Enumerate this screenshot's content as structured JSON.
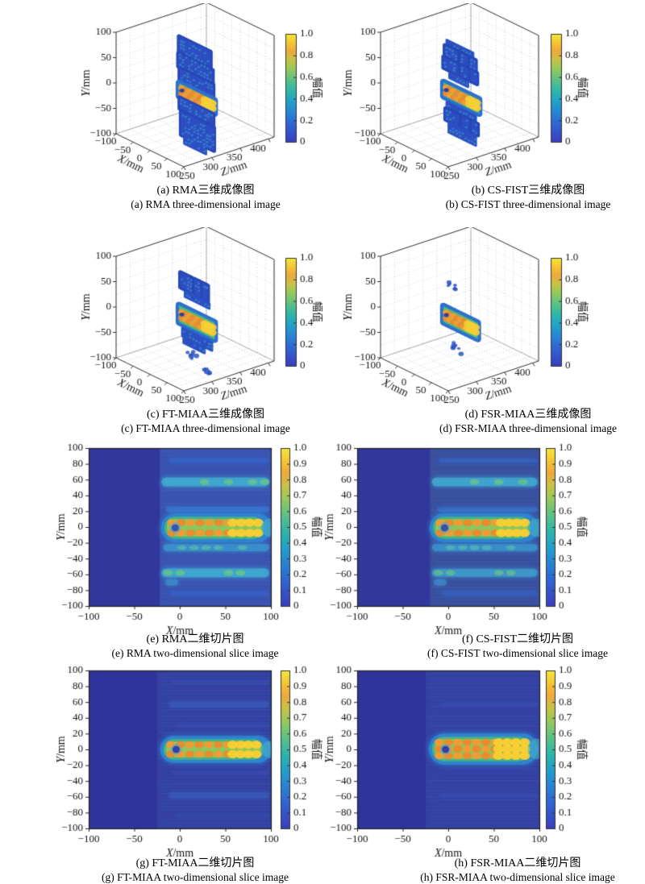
{
  "chart_data": {
    "type": "figure-grid",
    "description": "Eight-panel millimetre-wave radar imaging comparison: panels a-d are 3D voxel images, panels e-h are 2D slice heatmaps, each with an amplitude colorbar from 0 to 1.",
    "colorbar_label": "幅值",
    "colormap_stops": [
      [
        0,
        "#3a3fbc"
      ],
      [
        0.08,
        "#3551c8"
      ],
      [
        0.18,
        "#2f6ad4"
      ],
      [
        0.28,
        "#2787d4"
      ],
      [
        0.38,
        "#22a3c8"
      ],
      [
        0.48,
        "#2fb7a6"
      ],
      [
        0.58,
        "#5fc283"
      ],
      [
        0.68,
        "#97c95c"
      ],
      [
        0.76,
        "#c9c247"
      ],
      [
        0.84,
        "#eda93c"
      ],
      [
        0.92,
        "#f5c633"
      ],
      [
        1,
        "#f1ea3a"
      ]
    ],
    "axes_3d": {
      "x_label": "X/mm",
      "y_label": "Y/mm",
      "z_label": "Z/mm",
      "x_ticks": [
        "−100",
        "−50",
        "0",
        "50",
        "100"
      ],
      "y_ticks": [
        "100",
        "50",
        "0",
        "−50",
        "−100"
      ],
      "z_ticks": [
        "250",
        "300",
        "350",
        "400"
      ],
      "cb_ticks": [
        "1.0",
        "0.8",
        "0.6",
        "0.4",
        "0.2",
        "0"
      ],
      "xlim": [
        -100,
        100
      ],
      "ylim": [
        -100,
        100
      ],
      "zlim": [
        250,
        400
      ],
      "clim": [
        0,
        1
      ],
      "grid": true
    },
    "axes_2d": {
      "x_label": "X/mm",
      "y_label": "Y/mm",
      "x_ticks": [
        "−100",
        "−50",
        "0",
        "50",
        "100"
      ],
      "y_ticks": [
        "100",
        "80",
        "60",
        "40",
        "20",
        "0",
        "−20",
        "−40",
        "−60",
        "−80",
        "−100"
      ],
      "cb_ticks": [
        "1.0",
        "0.9",
        "0.8",
        "0.7",
        "0.6",
        "0.5",
        "0.4",
        "0.3",
        "0.2",
        "0.1",
        "0"
      ],
      "xlim": [
        -100,
        100
      ],
      "ylim": [
        -100,
        100
      ],
      "clim": [
        0,
        1
      ],
      "grid": false
    },
    "figures": [
      {
        "id": "a",
        "type": "scatter3d",
        "method": "RMA",
        "caption_zh": "(a) RMA三维成像图",
        "caption_en": "(a) RMA three-dimensional image",
        "bands": [
          {
            "kind": "slab",
            "x": [
              -18,
              76
            ],
            "y": [
              64,
              96
            ],
            "amp": 0.3
          },
          {
            "kind": "slab",
            "x": [
              -20,
              82
            ],
            "y": [
              36,
              62
            ],
            "amp": 0.3
          },
          {
            "kind": "slab",
            "x": [
              -16,
              84
            ],
            "y": [
              6,
              34
            ],
            "amp": 0.25
          },
          {
            "kind": "bright",
            "x": [
              -18,
              88
            ],
            "y": [
              -22,
              4
            ],
            "amp": 0.95
          },
          {
            "kind": "slab",
            "x": [
              -16,
              84
            ],
            "y": [
              -46,
              -24
            ],
            "amp": 0.3
          },
          {
            "kind": "slab",
            "x": [
              -12,
              86
            ],
            "y": [
              -96,
              -50
            ],
            "amp": 0.3
          },
          {
            "kind": "streak",
            "x": [
              -2,
              62
            ],
            "y": [
              -110,
              -98
            ],
            "amp": 0.3
          }
        ]
      },
      {
        "id": "b",
        "type": "scatter3d",
        "method": "CS-FIST",
        "caption_zh": "(b) CS-FIST三维成像图",
        "caption_en": "(b) CS-FIST three-dimensional image",
        "bands": [
          {
            "kind": "streak",
            "x": [
              -8,
              70
            ],
            "y": [
              82,
              92
            ],
            "amp": 0.25
          },
          {
            "kind": "slab",
            "x": [
              -14,
              78
            ],
            "y": [
              58,
              80
            ],
            "amp": 0.3,
            "gapped": true
          },
          {
            "kind": "slab",
            "x": [
              -18,
              82
            ],
            "y": [
              34,
              56
            ],
            "amp": 0.3,
            "gapped": true
          },
          {
            "kind": "streak",
            "x": [
              0,
              55
            ],
            "y": [
              20,
              28
            ],
            "amp": 0.2
          },
          {
            "kind": "bright",
            "x": [
              -18,
              88
            ],
            "y": [
              -22,
              6
            ],
            "amp": 0.95
          },
          {
            "kind": "streak",
            "x": [
              -8,
              78
            ],
            "y": [
              -40,
              -30
            ],
            "amp": 0.25
          },
          {
            "kind": "slab",
            "x": [
              -12,
              84
            ],
            "y": [
              -66,
              -44
            ],
            "amp": 0.3,
            "gapped": true
          },
          {
            "kind": "streak",
            "x": [
              -2,
              78
            ],
            "y": [
              -88,
              -70
            ],
            "amp": 0.25
          }
        ]
      },
      {
        "id": "c",
        "type": "scatter3d",
        "method": "FT-MIAA",
        "caption_zh": "(c) FT-MIAA三维成像图",
        "caption_en": "(c) FT-MIAA three-dimensional image",
        "bands": [
          {
            "kind": "slab",
            "x": [
              -14,
              68
            ],
            "y": [
              44,
              74
            ],
            "amp": 0.3,
            "gapped": true
          },
          {
            "kind": "streak",
            "x": [
              0,
              72
            ],
            "y": [
              30,
              40
            ],
            "amp": 0.2
          },
          {
            "kind": "bright",
            "x": [
              -18,
              88
            ],
            "y": [
              -26,
              8
            ],
            "amp": 0.95
          },
          {
            "kind": "streak",
            "x": [
              -8,
              80
            ],
            "y": [
              -50,
              -34
            ],
            "amp": 0.25
          },
          {
            "kind": "streak",
            "x": [
              -4,
              58
            ],
            "y": [
              -62,
              -52
            ],
            "amp": 0.2
          },
          {
            "kind": "speck",
            "x": [
              5,
              45
            ],
            "y": [
              -88,
              -66
            ],
            "amp": 0.15
          },
          {
            "kind": "speck",
            "x": [
              55,
              75
            ],
            "y": [
              -104,
              -92
            ],
            "amp": 0.15
          }
        ]
      },
      {
        "id": "d",
        "type": "scatter3d",
        "method": "FSR-MIAA",
        "caption_zh": "(d) FSR-MIAA三维成像图",
        "caption_en": "(d) FSR-MIAA three-dimensional image",
        "bands": [
          {
            "kind": "bright",
            "x": [
              -18,
              84
            ],
            "y": [
              -26,
              6
            ],
            "amp": 0.95
          },
          {
            "kind": "speck",
            "x": [
              -5,
              25
            ],
            "y": [
              48,
              60
            ],
            "amp": 0.1
          },
          {
            "kind": "speck",
            "x": [
              8,
              35
            ],
            "y": [
              -72,
              -56
            ],
            "amp": 0.1
          }
        ]
      },
      {
        "id": "e",
        "type": "heatmap",
        "method": "RMA",
        "caption_zh": "(e) RMA二维切片图",
        "caption_en": "(e) RMA two-dimensional slice image",
        "bg": {
          "left": "#32379b",
          "right": "#3a53b0",
          "split_x": -22
        },
        "bands": [
          {
            "y": 84,
            "h": 7,
            "x": [
              -12,
              98
            ],
            "color": "#3566cc",
            "alpha": 0.55,
            "amp": 0.2
          },
          {
            "y": 57,
            "h": 11,
            "x": [
              -20,
              98
            ],
            "color": "#3fa7cf",
            "alpha": 0.9,
            "amp": 0.45,
            "dots": "#6fc77e"
          },
          {
            "y": 22,
            "h": 7,
            "x": [
              -15,
              98
            ],
            "color": "#3a79d2",
            "alpha": 0.65,
            "amp": 0.25
          },
          {
            "y": -26,
            "h": 9,
            "x": [
              -18,
              98
            ],
            "color": "#3b95cd",
            "alpha": 0.8,
            "amp": 0.4,
            "dots": "#5fc4a8"
          },
          {
            "y": -58,
            "h": 11,
            "x": [
              -20,
              98
            ],
            "color": "#3fa7cf",
            "alpha": 0.9,
            "amp": 0.45,
            "dots": "#6fc77e"
          },
          {
            "y": -70,
            "h": 8,
            "x": [
              -16,
              -2
            ],
            "color": "#3e8fcd",
            "alpha": 0.7,
            "amp": 0.3
          },
          {
            "y": -84,
            "h": 6,
            "x": [
              -10,
              98
            ],
            "color": "#3566cc",
            "alpha": 0.5,
            "amp": 0.18
          }
        ],
        "hot_band": {
          "y": [
            -15,
            13
          ],
          "x": [
            -17,
            92
          ],
          "rows": [
            6.5,
            -6.5
          ],
          "hole": [
            -5,
            -1
          ],
          "right_hot": [
            58,
            86
          ],
          "amp": 1.0
        }
      },
      {
        "id": "f",
        "type": "heatmap",
        "method": "CS-FIST",
        "caption_zh": "(f) CS-FIST二维切片图",
        "caption_en": "(f) CS-FIST two-dimensional slice image",
        "bg": {
          "left": "#32379b",
          "right": "#39509e",
          "split_x": -20
        },
        "bands": [
          {
            "y": 84,
            "h": 6,
            "x": [
              -10,
              98
            ],
            "color": "#3566cc",
            "alpha": 0.5,
            "amp": 0.18
          },
          {
            "y": 57,
            "h": 11,
            "x": [
              -18,
              98
            ],
            "color": "#3fa7cf",
            "alpha": 0.85,
            "amp": 0.45,
            "dots": "#6fc77e"
          },
          {
            "y": 22,
            "h": 6,
            "x": [
              -12,
              98
            ],
            "color": "#3a79d2",
            "alpha": 0.55,
            "amp": 0.22
          },
          {
            "y": -26,
            "h": 9,
            "x": [
              -18,
              98
            ],
            "color": "#3b95cd",
            "alpha": 0.75,
            "amp": 0.38,
            "dots": "#5fc4a8"
          },
          {
            "y": -58,
            "h": 10,
            "x": [
              -18,
              98
            ],
            "color": "#3e9ccd",
            "alpha": 0.8,
            "amp": 0.4,
            "dots": "#6fc77e"
          },
          {
            "y": -70,
            "h": 8,
            "x": [
              -16,
              -2
            ],
            "color": "#3e8fcd",
            "alpha": 0.65,
            "amp": 0.28
          },
          {
            "y": -84,
            "h": 6,
            "x": [
              -8,
              98
            ],
            "color": "#3566cc",
            "alpha": 0.45,
            "amp": 0.16
          }
        ],
        "hot_band": {
          "y": [
            -15,
            13
          ],
          "x": [
            -17,
            90
          ],
          "rows": [
            6.5,
            -6.5
          ],
          "hole": [
            -4,
            -1
          ],
          "right_hot": [
            58,
            84
          ],
          "amp": 1.0
        }
      },
      {
        "id": "g",
        "type": "heatmap",
        "method": "FT-MIAA",
        "caption_zh": "(g) FT-MIAA二维切片图",
        "caption_en": "(g) FT-MIAA two-dimensional slice image",
        "bg": {
          "left": "#2f349a",
          "right": "#3441a2",
          "split_x": -25
        },
        "bands": [
          {
            "y": 84,
            "h": 5,
            "x": [
              -8,
              98
            ],
            "color": "#3a57b8",
            "alpha": 0.3,
            "amp": 0.12
          },
          {
            "y": 57,
            "h": 8,
            "x": [
              -12,
              98
            ],
            "color": "#3b63c0",
            "alpha": 0.45,
            "amp": 0.18
          },
          {
            "y": 30,
            "h": 5,
            "x": [
              -5,
              98
            ],
            "color": "#3a57b8",
            "alpha": 0.3,
            "amp": 0.12
          },
          {
            "y": -30,
            "h": 5,
            "x": [
              -8,
              98
            ],
            "color": "#3a57b8",
            "alpha": 0.3,
            "amp": 0.12
          },
          {
            "y": -58,
            "h": 8,
            "x": [
              -12,
              98
            ],
            "color": "#3b63c0",
            "alpha": 0.45,
            "amp": 0.18
          },
          {
            "y": -84,
            "h": 5,
            "x": [
              -6,
              98
            ],
            "color": "#3a57b8",
            "alpha": 0.28,
            "amp": 0.1
          }
        ],
        "hot_band": {
          "y": [
            -13,
            13
          ],
          "x": [
            -18,
            92
          ],
          "rows": [
            6,
            -6
          ],
          "hole": [
            -4,
            0
          ],
          "right_hot": [
            58,
            84
          ],
          "amp": 1.0
        }
      },
      {
        "id": "h",
        "type": "heatmap",
        "method": "FSR-MIAA",
        "caption_zh": "(h) FSR-MIAA二维切片图",
        "caption_en": "(h) FSR-MIAA two-dimensional slice image",
        "bg": {
          "left": "#2f349a",
          "right": "#3441a2",
          "split_x": -25
        },
        "bands": [
          {
            "y": 57,
            "h": 6,
            "x": [
              -10,
              98
            ],
            "color": "#3a57b8",
            "alpha": 0.3,
            "amp": 0.12
          },
          {
            "y": 20,
            "h": 4,
            "x": [
              -5,
              98
            ],
            "color": "#3a57b8",
            "alpha": 0.22,
            "amp": 0.08
          },
          {
            "y": -25,
            "h": 4,
            "x": [
              -5,
              98
            ],
            "color": "#3a57b8",
            "alpha": 0.22,
            "amp": 0.08
          },
          {
            "y": -58,
            "h": 6,
            "x": [
              -10,
              98
            ],
            "color": "#3a57b8",
            "alpha": 0.3,
            "amp": 0.12
          }
        ],
        "hot_band": {
          "y": [
            -15,
            16
          ],
          "x": [
            -18,
            90
          ],
          "rows": [
            8.5,
            0,
            -8.5
          ],
          "hole": [
            -3,
            0
          ],
          "right_hot": [
            55,
            84
          ],
          "amp": 1.0
        }
      }
    ]
  }
}
